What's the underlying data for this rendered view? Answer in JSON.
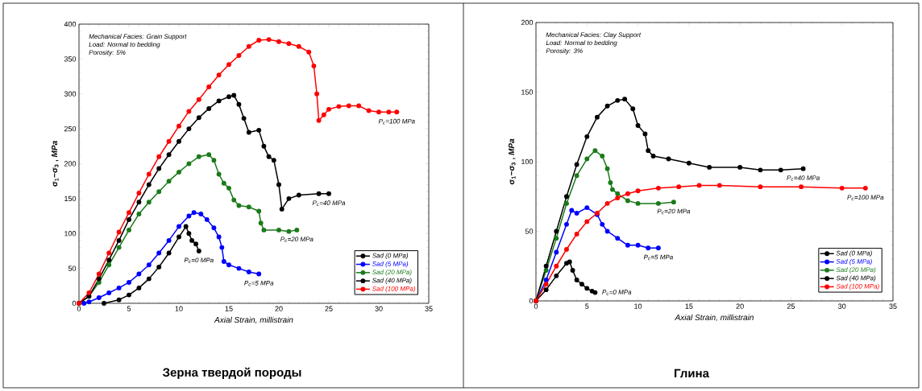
{
  "chart_data": [
    {
      "type": "line",
      "title": "Зерна твердой породы",
      "xlabel": "Axial Strain, millistrain",
      "ylabel": "σ$_{1}$−σ$_{3}$ , *MPa*",
      "xlim": [
        0,
        35
      ],
      "ylim": [
        0,
        400
      ],
      "xticks": [
        0,
        5,
        10,
        15,
        20,
        25,
        30,
        35
      ],
      "yticks": [
        0,
        50,
        100,
        150,
        200,
        250,
        300,
        350,
        400
      ],
      "grid": false,
      "legend": "bottom right",
      "marker": "circle",
      "annotations": [
        "Mechanical Facies: Grain Support",
        "Load: Normal to bedding",
        "Porosity: 5%",
        {
          "text": "P$_{c}$=100 MPa",
          "x": 31.8,
          "y": 274
        },
        {
          "text": "P$_{c}$=40 MPa",
          "x": 25,
          "y": 157
        },
        {
          "text": "P$_{c}$=20 MPa",
          "x": 21.8,
          "y": 105
        },
        {
          "text": "P$_{c}$=0 MPa",
          "x": 12,
          "y": 75
        },
        {
          "text": "P$_{c}$=5 MPa",
          "x": 18,
          "y": 42
        }
      ],
      "series": [
        {
          "name": "Sad (0 MPa)",
          "color": "#000000",
          "x": [
            2.5,
            4,
            5,
            6,
            7,
            8,
            9,
            10,
            10.7,
            11,
            11.3,
            11.7,
            12
          ],
          "values": [
            0,
            5,
            12,
            22,
            35,
            52,
            72,
            95,
            110,
            100,
            90,
            85,
            75
          ]
        },
        {
          "name": "Sad (5 MPa)",
          "color": "#0000ff",
          "x": [
            0.5,
            1,
            2,
            3,
            4,
            5,
            6,
            7,
            8,
            9,
            10,
            11,
            11.5,
            12.2,
            12.8,
            13.5,
            14,
            14.3,
            14.5,
            15,
            16,
            17,
            18
          ],
          "values": [
            0,
            2,
            8,
            15,
            22,
            30,
            42,
            55,
            72,
            90,
            110,
            125,
            130,
            128,
            120,
            108,
            95,
            80,
            60,
            55,
            50,
            45,
            42
          ]
        },
        {
          "name": "Sad (20 MPa)",
          "color": "#1a7a1a",
          "x": [
            0,
            1,
            2,
            3,
            4,
            5,
            6,
            7,
            8,
            9,
            10,
            11,
            12,
            13,
            13.5,
            14,
            14.5,
            15,
            15.5,
            16,
            17,
            18,
            18.2,
            18.5,
            20,
            21,
            21.8
          ],
          "values": [
            0,
            10,
            30,
            55,
            80,
            105,
            128,
            145,
            160,
            175,
            188,
            200,
            210,
            213,
            205,
            185,
            172,
            165,
            148,
            140,
            138,
            132,
            115,
            105,
            105,
            103,
            105
          ]
        },
        {
          "name": "Sad (40 MPa)",
          "color": "#000000",
          "x": [
            0,
            1,
            2,
            3,
            4,
            5,
            6,
            7,
            8,
            9,
            10,
            11,
            12,
            13,
            14,
            15,
            15.5,
            16,
            16.5,
            17,
            18,
            18.5,
            19,
            19.5,
            20,
            20.3,
            21,
            22,
            24,
            25
          ],
          "values": [
            0,
            10,
            35,
            62,
            90,
            120,
            145,
            170,
            193,
            213,
            232,
            250,
            266,
            279,
            290,
            296,
            298,
            285,
            265,
            245,
            248,
            225,
            210,
            205,
            170,
            135,
            150,
            155,
            157,
            157
          ]
        },
        {
          "name": "Sad (100 MPa)",
          "color": "#ff0000",
          "x": [
            0,
            1,
            2,
            3,
            4,
            5,
            6,
            7,
            8,
            9,
            10,
            11,
            12,
            13,
            14,
            15,
            16,
            17,
            18,
            19,
            20,
            21,
            22,
            23,
            23.5,
            23.8,
            24,
            24.5,
            25,
            26,
            27,
            28,
            29,
            30,
            31,
            31.8
          ],
          "values": [
            0,
            15,
            42,
            72,
            102,
            130,
            158,
            185,
            210,
            232,
            254,
            275,
            292,
            310,
            327,
            342,
            355,
            368,
            377,
            378,
            375,
            372,
            368,
            360,
            340,
            300,
            262,
            270,
            278,
            282,
            283,
            283,
            276,
            274,
            274,
            274
          ]
        }
      ]
    },
    {
      "type": "line",
      "title": "Глина",
      "xlabel": "Axial Strain, millistrain",
      "ylabel": "σ$_{1}$−σ$_{3}$ , *MPa*",
      "xlim": [
        0,
        35
      ],
      "ylim": [
        0,
        200
      ],
      "xticks": [
        0,
        5,
        10,
        15,
        20,
        25,
        30,
        35
      ],
      "yticks": [
        0,
        50,
        100,
        150,
        200
      ],
      "grid": false,
      "legend": "bottom right",
      "marker": "circle",
      "annotations": [
        "Mechanical Facies: Clay Support",
        "Load: Normal to bedding",
        "Porosity: 3%",
        {
          "text": "P$_{c}$=40 MPa",
          "x": 26.2,
          "y": 95
        },
        {
          "text": "P$_{c}$=100 MPa",
          "x": 32.3,
          "y": 81
        },
        {
          "text": "P$_{c}$=20 MPa",
          "x": 13.5,
          "y": 71
        },
        {
          "text": "P$_{c}$=5 MPa",
          "x": 12,
          "y": 38
        },
        {
          "text": "P$_{c}$=0 MPa",
          "x": 5.8,
          "y": 6
        }
      ],
      "series": [
        {
          "name": "Sad (0 MPa)",
          "color": "#000000",
          "x": [
            0,
            1,
            2,
            3,
            3.3,
            3.6,
            4,
            4.5,
            5,
            5.5,
            5.8
          ],
          "values": [
            0,
            8,
            18,
            27,
            28,
            22,
            15,
            12,
            9,
            7,
            6
          ]
        },
        {
          "name": "Sad (5 MPa)",
          "color": "#0000ff",
          "x": [
            0,
            1,
            2,
            3,
            3.5,
            4,
            5,
            6,
            6.5,
            7,
            8,
            9,
            10,
            11,
            12
          ],
          "values": [
            0,
            15,
            35,
            55,
            65,
            63,
            67,
            62,
            55,
            50,
            45,
            40,
            40,
            38,
            38
          ]
        },
        {
          "name": "Sad (20 MPa)",
          "color": "#1a7a1a",
          "x": [
            0,
            1,
            2,
            3,
            4,
            5,
            5.8,
            6.5,
            7,
            7.3,
            7.5,
            8,
            9,
            10,
            12,
            13.5
          ],
          "values": [
            0,
            22,
            45,
            70,
            90,
            102,
            108,
            104,
            95,
            85,
            80,
            77,
            72,
            70,
            70,
            71
          ]
        },
        {
          "name": "Sad (40 MPa)",
          "color": "#000000",
          "x": [
            0,
            1,
            2,
            3,
            4,
            5,
            6,
            7,
            8,
            8.7,
            9.5,
            10,
            10.7,
            11,
            11.5,
            13,
            15,
            17,
            20,
            22,
            24,
            26.2
          ],
          "values": [
            0,
            25,
            50,
            75,
            98,
            118,
            132,
            140,
            144,
            145,
            138,
            126,
            120,
            108,
            104,
            102,
            99,
            96,
            96,
            94,
            94,
            95
          ]
        },
        {
          "name": "Sad (100 MPa)",
          "color": "#ff0000",
          "x": [
            0,
            1,
            2,
            3,
            4,
            5,
            6,
            7,
            8,
            9,
            10,
            12,
            14,
            16,
            18,
            22,
            26,
            30,
            32.3
          ],
          "values": [
            0,
            12,
            25,
            37,
            48,
            57,
            63,
            70,
            74,
            77,
            79,
            81,
            82,
            83,
            83,
            82,
            82,
            81,
            81
          ]
        }
      ]
    }
  ]
}
